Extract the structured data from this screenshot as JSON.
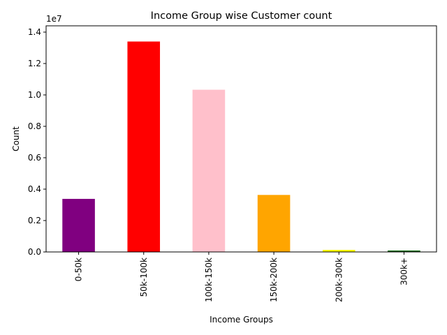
{
  "chart_data": {
    "type": "bar",
    "title": "Income Group wise Customer count",
    "xlabel": "Income Groups",
    "ylabel": "Count",
    "scale_label": "1e7",
    "categories": [
      "0-50k",
      "50k-100k",
      "100k-150k",
      "150k-200k",
      "200k-300k",
      "300k+"
    ],
    "values": [
      3380000,
      13400000,
      10330000,
      3630000,
      130000,
      90000
    ],
    "colors": [
      "#800080",
      "#ff0000",
      "#ffc0cb",
      "#ffa500",
      "#ffff00",
      "#006400"
    ],
    "ylim": [
      0,
      14400000
    ],
    "yticks": [
      0,
      2000000,
      4000000,
      6000000,
      8000000,
      10000000,
      12000000,
      14000000
    ],
    "ytick_labels": [
      "0.0",
      "0.2",
      "0.4",
      "0.6",
      "0.8",
      "1.0",
      "1.2",
      "1.4"
    ],
    "grid": false,
    "legend": "none"
  }
}
